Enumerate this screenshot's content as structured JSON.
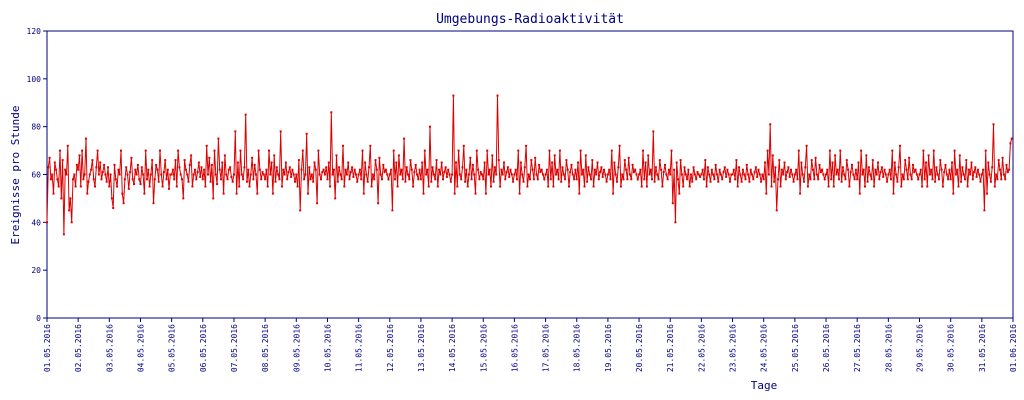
{
  "chart_data": {
    "type": "line",
    "title": "Umgebungs-Radioaktivität",
    "xlabel": "Tage",
    "ylabel": "Ereignisse pro Stunde",
    "ylim": [
      0,
      120
    ],
    "y_ticks": [
      0,
      20,
      40,
      60,
      80,
      100,
      120
    ],
    "x_ticks": [
      "01.05.2016",
      "02.05.2016",
      "03.05.2016",
      "04.05.2016",
      "05.05.2016",
      "06.05.2016",
      "07.05.2016",
      "08.05.2016",
      "09.05.2016",
      "10.05.2016",
      "11.05.2016",
      "12.05.2016",
      "13.05.2016",
      "14.05.2016",
      "15.05.2016",
      "16.05.2016",
      "17.05.2016",
      "18.05.2016",
      "19.05.2016",
      "20.05.2016",
      "21.05.2016",
      "22.05.2016",
      "23.05.2016",
      "24.05.2016",
      "25.05.2016",
      "26.05.2016",
      "27.05.2016",
      "28.05.2016",
      "29.05.2016",
      "30.05.2016",
      "31.05.2016",
      "01.06.2016"
    ],
    "x_tick_labels": [
      "01.05.2016",
      "02.05.2016",
      "03.05.2016",
      "04.05.2016",
      "05.05.2016",
      "06.05.2016",
      "07.05.2016",
      "08.05.2016",
      "09.05.2016",
      "10.05.2016",
      "11.05.2016",
      "12.05.2016",
      "13.05.2016",
      "14.05.2016",
      "15.05.2016",
      "16.05.2016",
      "17.05.2016",
      "18.05.2016",
      "19.05.2016",
      "20.05.2016",
      "21.05.2016",
      "22.05.2016",
      "23.05.2016",
      "24.05.2016",
      "25.05.2016",
      "26.05.2016",
      "27.05.2016",
      "28.05.2016",
      "29.05.2016",
      "30.05.2016",
      "31.05.2016",
      "01.06.2016"
    ],
    "x_start": "01.05.2016",
    "x_end": "01.06.2016",
    "sampling": "hourly",
    "grid": false,
    "colors": {
      "series": "#dd0000",
      "axis": "#000080",
      "text": "#000080"
    },
    "series": [
      {
        "values_per_day": [
          [
            40,
            63,
            67,
            58,
            60,
            52,
            65,
            62,
            58,
            55,
            70,
            50,
            66,
            35,
            62,
            60,
            72,
            45,
            50,
            40,
            58,
            60,
            55,
            64
          ],
          [
            62,
            68,
            55,
            70,
            58,
            60,
            75,
            52,
            57,
            60,
            62,
            66,
            58,
            55,
            63,
            70,
            60,
            65,
            58,
            61,
            64,
            60,
            57,
            63
          ],
          [
            55,
            60,
            50,
            46,
            64,
            58,
            55,
            62,
            60,
            70,
            52,
            48,
            58,
            63,
            60,
            54,
            61,
            67,
            58,
            56,
            62,
            60,
            64,
            58
          ],
          [
            56,
            63,
            60,
            52,
            70,
            58,
            62,
            55,
            60,
            66,
            48,
            58,
            64,
            62,
            57,
            70,
            60,
            55,
            61,
            66,
            58,
            62,
            54,
            60
          ],
          [
            60,
            62,
            58,
            66,
            55,
            70,
            63,
            60,
            58,
            50,
            66,
            62,
            60,
            57,
            64,
            68,
            55,
            60,
            62,
            58,
            61,
            65,
            59,
            63
          ],
          [
            58,
            62,
            55,
            72,
            60,
            67,
            57,
            64,
            50,
            70,
            60,
            56,
            75,
            62,
            58,
            65,
            52,
            68,
            60,
            58,
            62,
            63,
            59,
            57
          ],
          [
            60,
            78,
            52,
            65,
            55,
            70,
            60,
            58,
            63,
            85,
            57,
            62,
            55,
            60,
            67,
            58,
            64,
            60,
            52,
            70,
            62,
            58,
            61,
            60
          ],
          [
            58,
            62,
            55,
            70,
            60,
            65,
            52,
            68,
            57,
            63,
            60,
            58,
            78,
            55,
            62,
            60,
            65,
            58,
            61,
            63,
            59,
            62,
            60,
            57
          ],
          [
            60,
            55,
            66,
            45,
            62,
            70,
            58,
            60,
            77,
            52,
            63,
            58,
            60,
            57,
            65,
            62,
            48,
            70,
            60,
            58,
            61,
            62,
            60,
            63
          ],
          [
            58,
            65,
            55,
            86,
            60,
            62,
            50,
            68,
            57,
            63,
            60,
            58,
            72,
            55,
            62,
            60,
            65,
            58,
            61,
            63,
            59,
            62,
            60,
            57
          ],
          [
            60,
            62,
            58,
            70,
            52,
            65,
            60,
            57,
            63,
            72,
            55,
            60,
            58,
            66,
            62,
            48,
            67,
            60,
            58,
            64,
            61,
            62,
            60,
            58
          ],
          [
            60,
            62,
            45,
            70,
            58,
            65,
            55,
            68,
            60,
            62,
            58,
            75,
            57,
            63,
            60,
            58,
            66,
            62,
            55,
            61,
            64,
            60,
            58,
            62
          ],
          [
            58,
            65,
            52,
            70,
            60,
            62,
            55,
            80,
            57,
            63,
            60,
            58,
            66,
            55,
            62,
            60,
            65,
            58,
            61,
            63,
            59,
            62,
            60,
            57
          ],
          [
            60,
            93,
            52,
            65,
            55,
            70,
            60,
            58,
            63,
            72,
            57,
            62,
            55,
            60,
            67,
            58,
            64,
            60,
            52,
            70,
            62,
            58,
            61,
            60
          ],
          [
            58,
            65,
            52,
            70,
            60,
            62,
            55,
            68,
            57,
            63,
            60,
            93,
            66,
            55,
            62,
            60,
            65,
            58,
            61,
            63,
            59,
            62,
            60,
            57
          ],
          [
            60,
            62,
            58,
            70,
            52,
            65,
            60,
            57,
            63,
            72,
            55,
            60,
            58,
            66,
            62,
            58,
            67,
            60,
            58,
            64,
            61,
            62,
            60,
            58
          ],
          [
            60,
            62,
            55,
            70,
            58,
            65,
            55,
            68,
            60,
            62,
            58,
            70,
            57,
            63,
            60,
            58,
            66,
            62,
            55,
            61,
            64,
            60,
            58,
            62
          ],
          [
            58,
            65,
            52,
            70,
            60,
            62,
            55,
            68,
            57,
            63,
            60,
            58,
            66,
            55,
            62,
            60,
            65,
            58,
            61,
            63,
            59,
            62,
            60,
            57
          ],
          [
            60,
            62,
            58,
            70,
            52,
            65,
            60,
            57,
            63,
            72,
            55,
            60,
            58,
            66,
            62,
            58,
            67,
            60,
            58,
            64,
            61,
            62,
            60,
            58
          ],
          [
            60,
            62,
            55,
            70,
            58,
            65,
            55,
            68,
            60,
            62,
            58,
            78,
            57,
            63,
            60,
            58,
            66,
            62,
            55,
            61,
            64,
            60,
            58,
            62
          ],
          [
            60,
            70,
            48,
            62,
            40,
            65,
            58,
            52,
            66,
            60,
            55,
            63,
            60,
            58,
            62,
            55,
            60,
            57,
            63,
            60,
            58,
            61,
            60,
            59
          ],
          [
            60,
            62,
            58,
            66,
            55,
            63,
            60,
            57,
            62,
            60,
            58,
            64,
            60,
            57,
            62,
            60,
            58,
            61,
            63,
            59,
            62,
            60,
            57,
            60
          ],
          [
            60,
            62,
            58,
            66,
            55,
            63,
            60,
            57,
            62,
            60,
            58,
            64,
            60,
            57,
            62,
            60,
            58,
            61,
            63,
            59,
            62,
            60,
            57,
            60
          ],
          [
            58,
            65,
            52,
            70,
            60,
            81,
            55,
            68,
            57,
            63,
            45,
            58,
            66,
            55,
            62,
            60,
            65,
            58,
            61,
            63,
            59,
            62,
            60,
            57
          ],
          [
            60,
            62,
            58,
            70,
            52,
            65,
            60,
            57,
            63,
            72,
            55,
            60,
            58,
            66,
            62,
            58,
            67,
            60,
            58,
            64,
            61,
            62,
            60,
            58
          ],
          [
            60,
            62,
            55,
            70,
            58,
            65,
            55,
            68,
            60,
            62,
            58,
            70,
            57,
            63,
            60,
            58,
            66,
            62,
            55,
            61,
            64,
            60,
            58,
            62
          ],
          [
            58,
            65,
            52,
            70,
            60,
            62,
            55,
            68,
            57,
            63,
            60,
            58,
            66,
            55,
            62,
            60,
            65,
            58,
            61,
            63,
            59,
            62,
            60,
            57
          ],
          [
            60,
            62,
            58,
            70,
            52,
            65,
            60,
            57,
            63,
            72,
            55,
            60,
            58,
            66,
            62,
            58,
            67,
            60,
            58,
            64,
            61,
            62,
            60,
            58
          ],
          [
            60,
            62,
            55,
            70,
            58,
            65,
            55,
            68,
            60,
            62,
            58,
            70,
            57,
            63,
            60,
            58,
            66,
            62,
            55,
            61,
            64,
            60,
            58,
            62
          ],
          [
            58,
            65,
            52,
            70,
            60,
            62,
            55,
            68,
            57,
            63,
            60,
            58,
            66,
            55,
            62,
            60,
            65,
            58,
            61,
            63,
            59,
            62,
            60,
            57
          ],
          [
            60,
            62,
            45,
            70,
            52,
            65,
            60,
            57,
            63,
            81,
            55,
            60,
            58,
            66,
            62,
            58,
            67,
            60,
            58,
            64,
            61,
            62,
            73,
            75
          ]
        ]
      }
    ]
  }
}
